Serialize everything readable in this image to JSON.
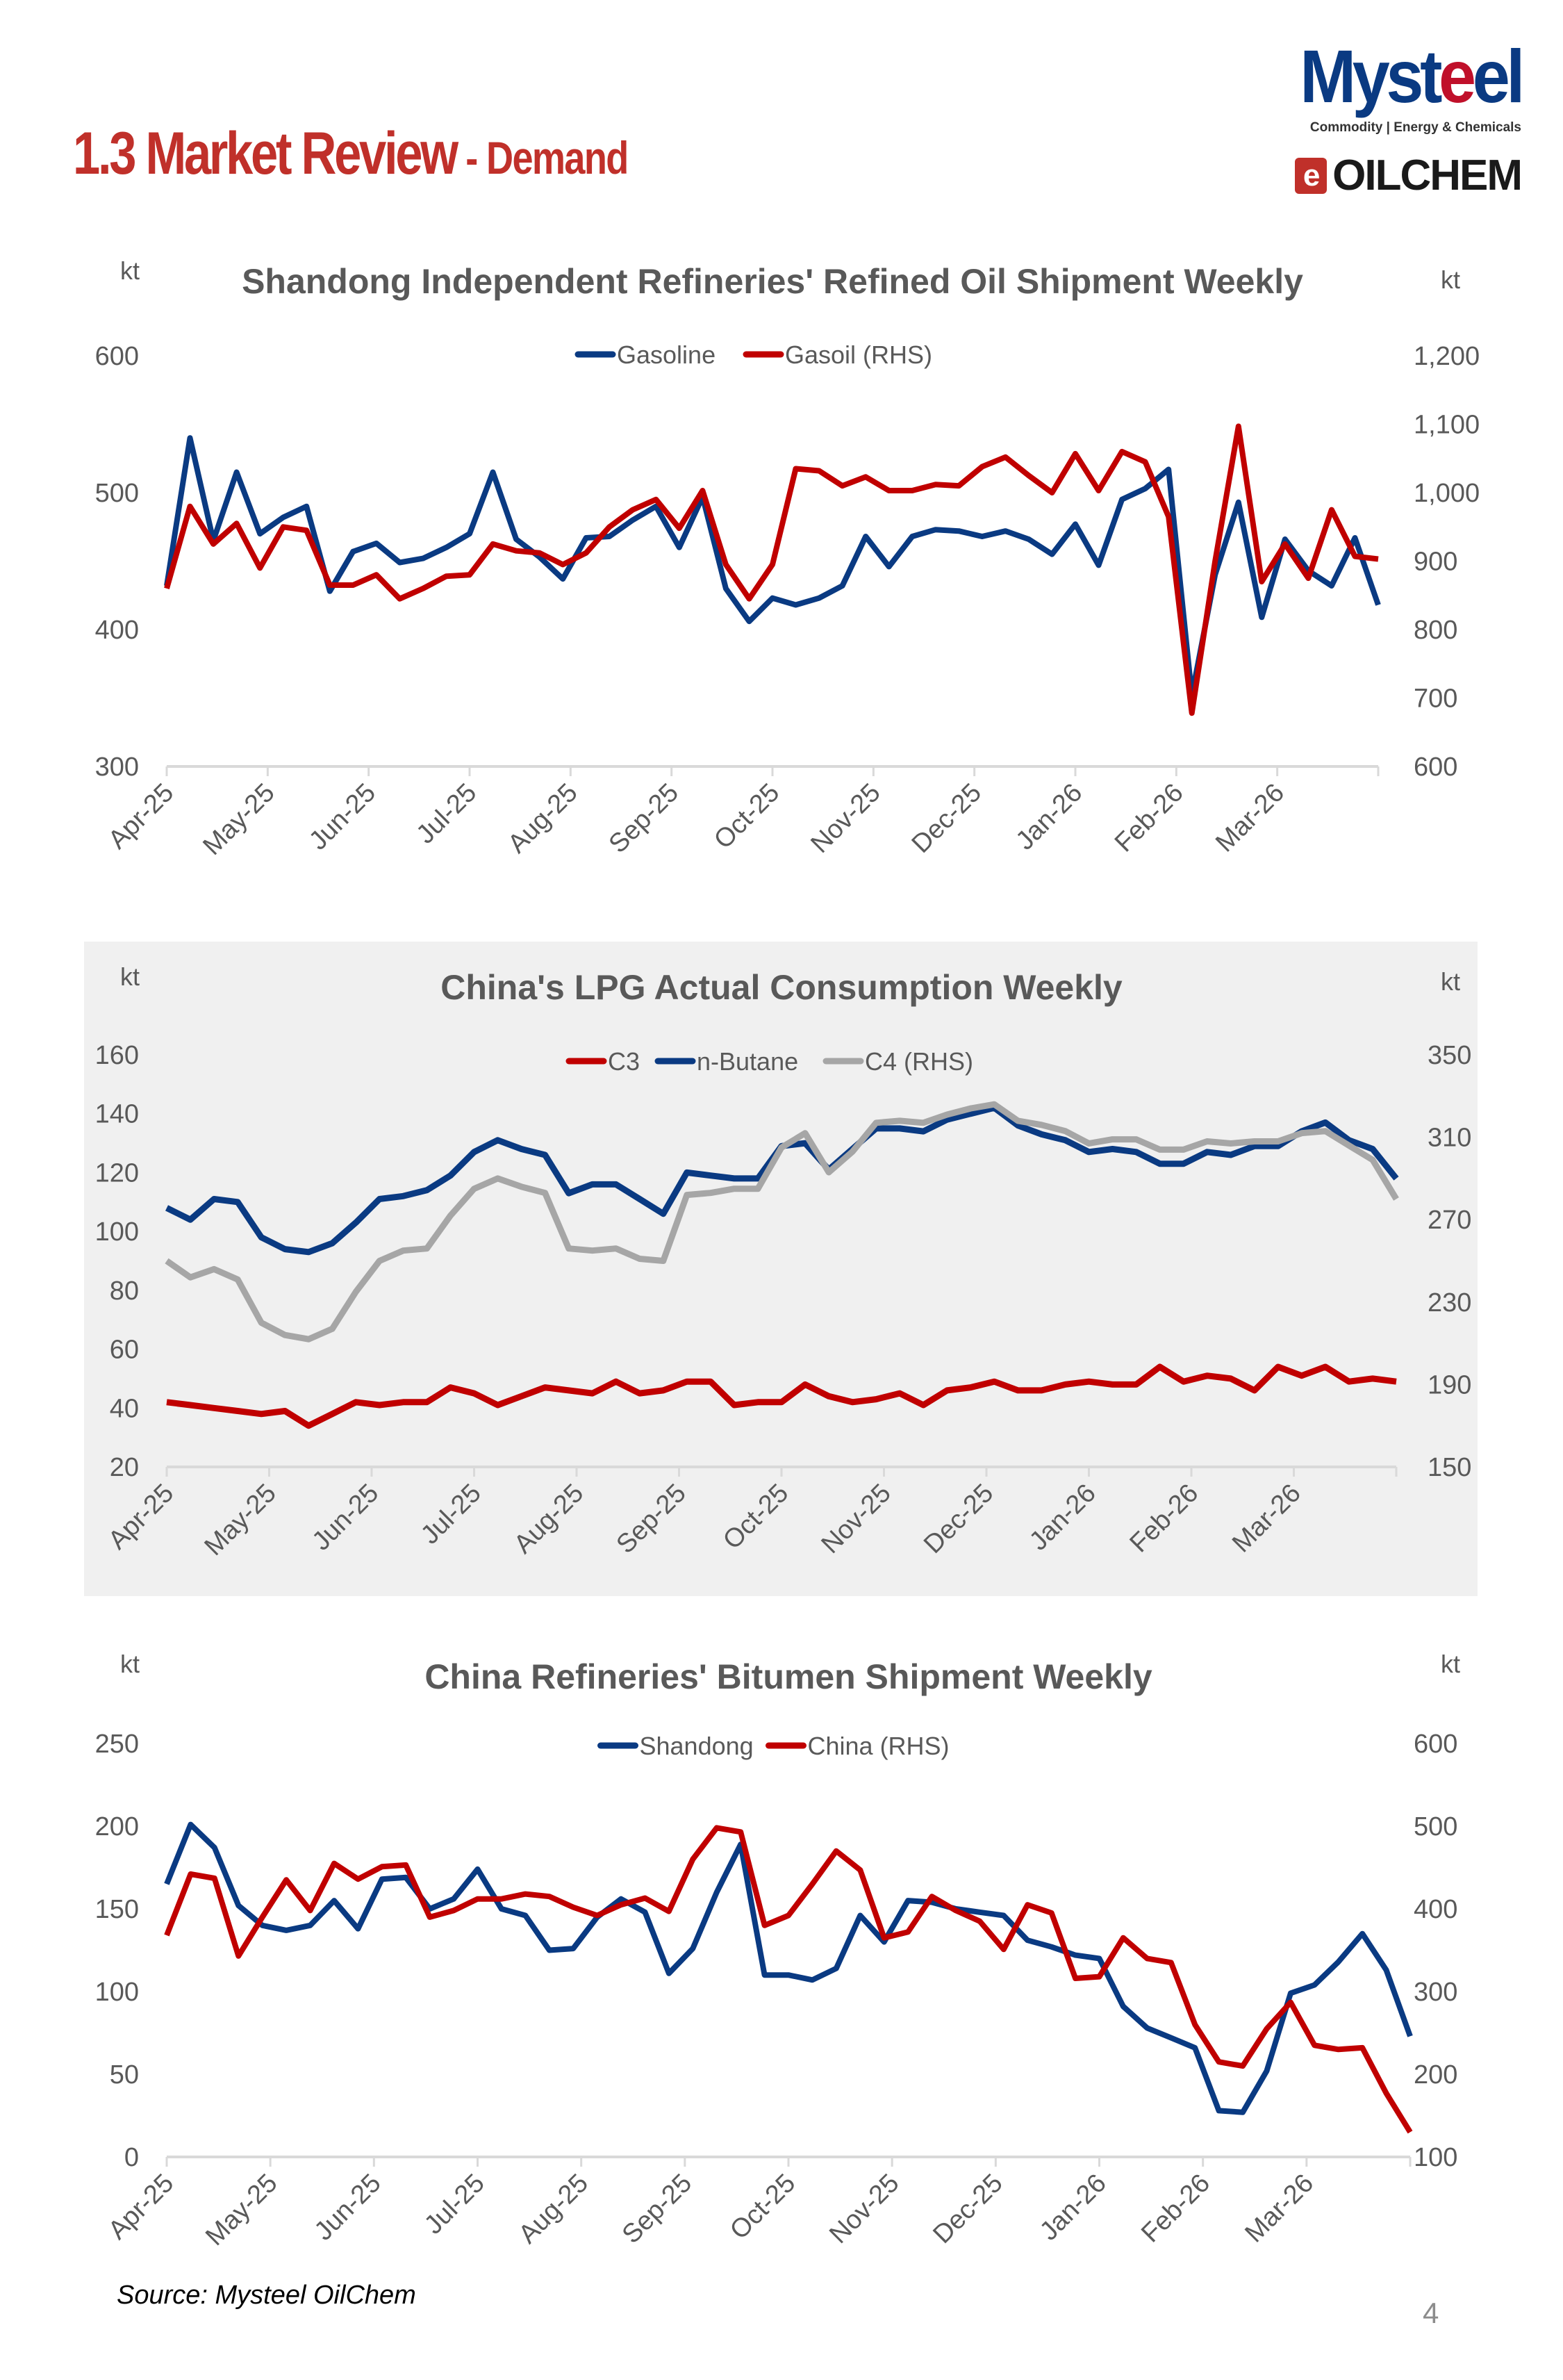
{
  "header": {
    "title_main": "1.3 Market Review",
    "title_sub": " - Demand",
    "logo_brand": "Mysteel",
    "logo_tagline": "Commodity | Energy & Chemicals",
    "logo_oilchem": "OILCHEM"
  },
  "footer": {
    "source": "Source: Mysteel OilChem",
    "page_number": "4"
  },
  "colors": {
    "blue": "#0a3a82",
    "red": "#c00000",
    "gray": "#a6a6a6",
    "panel_bg": "#f0f0f0",
    "title_red": "#c0302a"
  },
  "chart_data": [
    {
      "type": "line",
      "title": "Shandong Independent Refineries' Refined Oil Shipment Weekly",
      "left_unit": "kt",
      "right_unit": "kt",
      "x_tick_labels": [
        "Apr-25",
        "May-25",
        "Jun-25",
        "Jul-25",
        "Aug-25",
        "Sep-25",
        "Oct-25",
        "Nov-25",
        "Dec-25",
        "Jan-26",
        "Feb-26",
        "Mar-26"
      ],
      "ylim_left": [
        300,
        600
      ],
      "yticks_left": [
        "300",
        "400",
        "500",
        "600"
      ],
      "ylim_right": [
        600,
        1200
      ],
      "yticks_right": [
        "600",
        "700",
        "800",
        "900",
        "1,000",
        "1,100",
        "1,200"
      ],
      "legend": "top-center",
      "series": [
        {
          "name": "Gasoline",
          "axis": "left",
          "color": "#0a3a82",
          "values": [
            432,
            540,
            465,
            515,
            470,
            482,
            490,
            428,
            457,
            463,
            449,
            452,
            460,
            470,
            515,
            466,
            453,
            437,
            467,
            468,
            480,
            490,
            460,
            497,
            430,
            406,
            423,
            418,
            423,
            432,
            468,
            446,
            468,
            473,
            472,
            468,
            472,
            466,
            455,
            477,
            447,
            495,
            503,
            517,
            352,
            440,
            493,
            409,
            466,
            443,
            432,
            467,
            418
          ]
        },
        {
          "name": "Gasoil (RHS)",
          "axis": "right",
          "color": "#c00000",
          "values": [
            860,
            980,
            925,
            955,
            890,
            950,
            945,
            865,
            865,
            880,
            845,
            860,
            878,
            880,
            925,
            915,
            912,
            895,
            912,
            950,
            975,
            990,
            948,
            1003,
            895,
            845,
            895,
            1035,
            1032,
            1010,
            1023,
            1003,
            1003,
            1012,
            1010,
            1038,
            1052,
            1025,
            1000,
            1057,
            1003,
            1060,
            1045,
            965,
            678,
            900,
            1097,
            870,
            925,
            875,
            975,
            907,
            903
          ]
        }
      ]
    },
    {
      "type": "line",
      "title": "China's LPG Actual Consumption Weekly",
      "left_unit": "kt",
      "right_unit": "kt",
      "x_tick_labels": [
        "Apr-25",
        "May-25",
        "Jun-25",
        "Jul-25",
        "Aug-25",
        "Sep-25",
        "Oct-25",
        "Nov-25",
        "Dec-25",
        "Jan-26",
        "Feb-26",
        "Mar-26"
      ],
      "ylim_left": [
        20,
        160
      ],
      "yticks_left": [
        "20",
        "40",
        "60",
        "80",
        "100",
        "120",
        "140",
        "160"
      ],
      "ylim_right": [
        150,
        350
      ],
      "yticks_right": [
        "150",
        "190",
        "230",
        "270",
        "310",
        "350"
      ],
      "legend": "top-center",
      "series": [
        {
          "name": "C3",
          "axis": "left",
          "color": "#c00000",
          "values": [
            42,
            41,
            40,
            39,
            38,
            39,
            34,
            38,
            42,
            41,
            42,
            42,
            47,
            45,
            41,
            44,
            47,
            46,
            45,
            49,
            45,
            46,
            49,
            49,
            41,
            42,
            42,
            48,
            44,
            42,
            43,
            45,
            41,
            46,
            47,
            49,
            46,
            46,
            48,
            49,
            48,
            48,
            54,
            49,
            51,
            50,
            46,
            54,
            51,
            54,
            49,
            50,
            49
          ]
        },
        {
          "name": "n-Butane",
          "axis": "left",
          "color": "#0a3a82",
          "values": [
            108,
            104,
            111,
            110,
            98,
            94,
            93,
            96,
            103,
            111,
            112,
            114,
            119,
            127,
            131,
            128,
            126,
            113,
            116,
            116,
            111,
            106,
            120,
            119,
            118,
            118,
            129,
            130,
            121,
            128,
            135,
            135,
            134,
            138,
            140,
            142,
            136,
            133,
            131,
            127,
            128,
            127,
            123,
            123,
            127,
            126,
            129,
            129,
            134,
            137,
            131,
            128,
            118
          ]
        },
        {
          "name": "C4 (RHS)",
          "axis": "right",
          "color": "#a6a6a6",
          "values": [
            250,
            242,
            246,
            241,
            220,
            214,
            212,
            217,
            235,
            250,
            255,
            256,
            272,
            285,
            290,
            286,
            283,
            256,
            255,
            256,
            251,
            250,
            282,
            283,
            285,
            285,
            305,
            312,
            293,
            303,
            317,
            318,
            317,
            321,
            324,
            326,
            318,
            316,
            313,
            307,
            309,
            309,
            304,
            304,
            308,
            307,
            308,
            308,
            312,
            313,
            306,
            299,
            280
          ]
        }
      ]
    },
    {
      "type": "line",
      "title": "China Refineries' Bitumen Shipment Weekly",
      "left_unit": "kt",
      "right_unit": "kt",
      "x_tick_labels": [
        "Apr-25",
        "May-25",
        "Jun-25",
        "Jul-25",
        "Aug-25",
        "Sep-25",
        "Oct-25",
        "Nov-25",
        "Dec-25",
        "Jan-26",
        "Feb-26",
        "Mar-26"
      ],
      "ylim_left": [
        0,
        250
      ],
      "yticks_left": [
        "0",
        "50",
        "100",
        "150",
        "200",
        "250"
      ],
      "ylim_right": [
        100,
        600
      ],
      "yticks_right": [
        "100",
        "200",
        "300",
        "400",
        "500",
        "600"
      ],
      "legend": "top-center",
      "series": [
        {
          "name": "Shandong",
          "axis": "left",
          "color": "#0a3a82",
          "values": [
            165,
            201,
            187,
            152,
            140,
            137,
            140,
            155,
            138,
            168,
            169,
            150,
            156,
            174,
            150,
            146,
            125,
            126,
            145,
            156,
            148,
            111,
            126,
            160,
            189,
            110,
            110,
            107,
            114,
            146,
            130,
            155,
            154,
            150,
            148,
            146,
            131,
            127,
            122,
            120,
            91,
            78,
            72,
            66,
            28,
            27,
            52,
            99,
            104,
            118,
            135,
            113,
            73
          ]
        },
        {
          "name": "China (RHS)",
          "axis": "right",
          "color": "#c00000",
          "values": [
            368,
            442,
            437,
            343,
            390,
            435,
            398,
            455,
            436,
            451,
            453,
            390,
            398,
            412,
            412,
            418,
            415,
            402,
            392,
            405,
            413,
            397,
            460,
            498,
            493,
            380,
            392,
            430,
            470,
            447,
            365,
            372,
            415,
            398,
            385,
            351,
            405,
            395,
            316,
            318,
            365,
            340,
            335,
            260,
            215,
            210,
            255,
            287,
            235,
            230,
            232,
            177,
            130
          ]
        }
      ]
    }
  ]
}
